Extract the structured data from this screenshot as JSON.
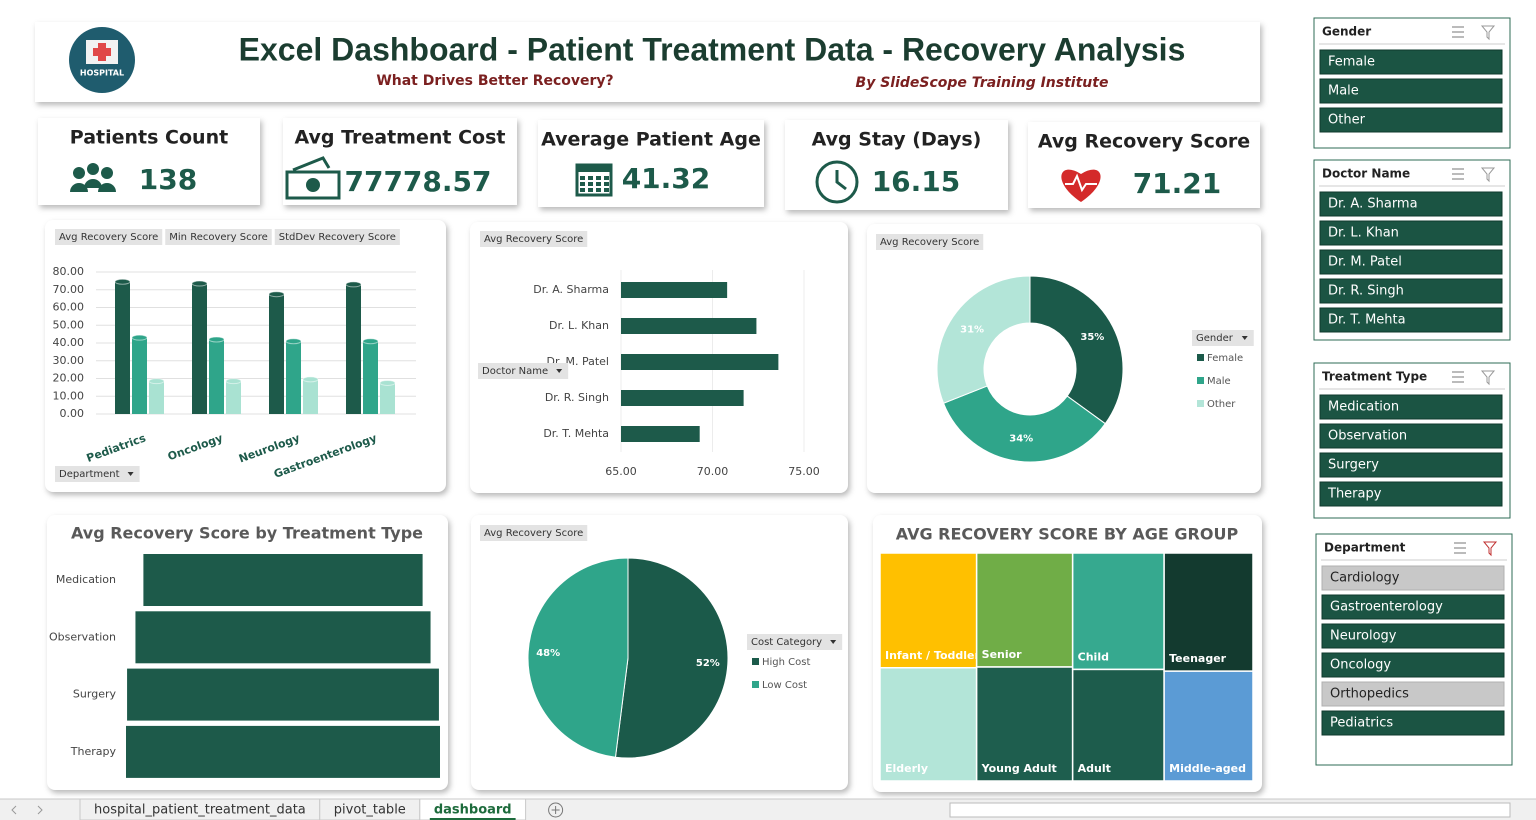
{
  "header": {
    "logo": "HOSPITAL",
    "title": "Excel Dashboard - Patient Treatment Data - Recovery Analysis",
    "subtitle": "What Drives Better Recovery?",
    "credit": "By SlideScope Training Institute"
  },
  "kpis": [
    {
      "label": "Patients Count",
      "value": 138
    },
    {
      "label": "Avg Treatment Cost",
      "value": 77778.57
    },
    {
      "label": "Average Patient Age",
      "value": 41.32
    },
    {
      "label": "Avg Stay (Days)",
      "value": 16.15
    },
    {
      "label": "Avg Recovery Score",
      "value": 71.21
    }
  ],
  "chart_data": [
    {
      "type": "bar",
      "filter_button": "Department",
      "categories": [
        "Pediatrics",
        "Oncology",
        "Neurology",
        "Gastroenterology"
      ],
      "series": [
        {
          "name": "Avg Recovery Score",
          "color": "#1d5a4a",
          "values": [
            74.5,
            73.5,
            67.5,
            73.0
          ]
        },
        {
          "name": "Min Recovery Score",
          "color": "#2fa58a",
          "values": [
            43.0,
            42.0,
            41.0,
            41.0
          ]
        },
        {
          "name": "StdDev Recovery Score",
          "color": "#a9e2d2",
          "values": [
            18.5,
            18.5,
            19.5,
            17.5
          ]
        }
      ],
      "ylim": [
        0,
        80
      ],
      "yticks": [
        {
          "value": 0,
          "label": "0.00"
        },
        {
          "value": 10,
          "label": "10.00"
        },
        {
          "value": 20,
          "label": "20.00"
        },
        {
          "value": 30,
          "label": "30.00"
        },
        {
          "value": 40,
          "label": "40.00"
        },
        {
          "value": 50,
          "label": "50.00"
        },
        {
          "value": 60,
          "label": "60.00"
        },
        {
          "value": 70,
          "label": "70.00"
        },
        {
          "value": 80,
          "label": "80.00"
        }
      ],
      "grid": true
    },
    {
      "type": "hbar",
      "series_name": "Avg Recovery Score",
      "axis_button": "Doctor Name",
      "categories": [
        "Dr. A. Sharma",
        "Dr. L. Khan",
        "Dr. M. Patel",
        "Dr. R. Singh",
        "Dr. T. Mehta"
      ],
      "values": [
        70.8,
        72.4,
        73.6,
        71.7,
        69.3
      ],
      "color": "#1d5a4a",
      "xlim": [
        65,
        75
      ],
      "xticks": [
        {
          "value": 65,
          "label": "65.00"
        },
        {
          "value": 70,
          "label": "70.00"
        },
        {
          "value": 75,
          "label": "75.00"
        }
      ]
    },
    {
      "type": "donut",
      "series_name": "Avg Recovery Score",
      "legend_title": "Gender",
      "categories": [
        "Female",
        "Male",
        "Other"
      ],
      "values": [
        35,
        34,
        31
      ],
      "value_labels": [
        "35%",
        "34%",
        "31%"
      ],
      "colors": [
        "#1b5a4a",
        "#2fa58a",
        "#b3e5d8"
      ]
    },
    {
      "type": "funnel",
      "title": "Avg Recovery Score by Treatment Type",
      "categories": [
        "Medication",
        "Observation",
        "Surgery",
        "Therapy"
      ],
      "values": [
        65.0,
        68.7,
        72.6,
        73.1
      ],
      "color": "#1d5a4a"
    },
    {
      "type": "pie",
      "series_name": "Avg Recovery Score",
      "legend_title": "Cost Category",
      "categories": [
        "High Cost",
        "Low Cost"
      ],
      "values": [
        52,
        48
      ],
      "value_labels": [
        "52%",
        "48%"
      ],
      "colors": [
        "#1b5a4a",
        "#2fa58a"
      ]
    },
    {
      "type": "treemap",
      "title": "AVG RECOVERY SCORE BY AGE GROUP",
      "categories": [
        "Infant / Toddler",
        "Senior",
        "Child",
        "Teenager",
        "Elderly",
        "Young Adult",
        "Adult",
        "Middle-aged"
      ],
      "values": [
        75,
        74,
        72,
        71,
        74,
        74,
        69,
        66
      ],
      "colors": [
        "#ffc000",
        "#70ad47",
        "#36a98f",
        "#133a2f",
        "#b3e5d8",
        "#1e5e4e",
        "#1d5c4c",
        "#5b9bd5"
      ]
    }
  ],
  "slicers": [
    {
      "title": "Gender",
      "items": [
        {
          "label": "Female",
          "active": true
        },
        {
          "label": "Male",
          "active": true
        },
        {
          "label": "Other",
          "active": true
        }
      ]
    },
    {
      "title": "Doctor Name",
      "items": [
        {
          "label": "Dr. A. Sharma",
          "active": true
        },
        {
          "label": "Dr. L. Khan",
          "active": true
        },
        {
          "label": "Dr. M. Patel",
          "active": true
        },
        {
          "label": "Dr. R. Singh",
          "active": true
        },
        {
          "label": "Dr. T. Mehta",
          "active": true
        }
      ]
    },
    {
      "title": "Treatment Type",
      "items": [
        {
          "label": "Medication",
          "active": true
        },
        {
          "label": "Observation",
          "active": true
        },
        {
          "label": "Surgery",
          "active": true
        },
        {
          "label": "Therapy",
          "active": true
        }
      ]
    },
    {
      "title": "Department",
      "items": [
        {
          "label": "Cardiology",
          "active": false
        },
        {
          "label": "Gastroenterology",
          "active": true
        },
        {
          "label": "Neurology",
          "active": true
        },
        {
          "label": "Oncology",
          "active": true
        },
        {
          "label": "Orthopedics",
          "active": false
        },
        {
          "label": "Pediatrics",
          "active": true
        }
      ]
    }
  ],
  "tabs": {
    "sheets": [
      "hospital_patient_treatment_data",
      "pivot_table",
      "dashboard"
    ],
    "active": 2
  }
}
